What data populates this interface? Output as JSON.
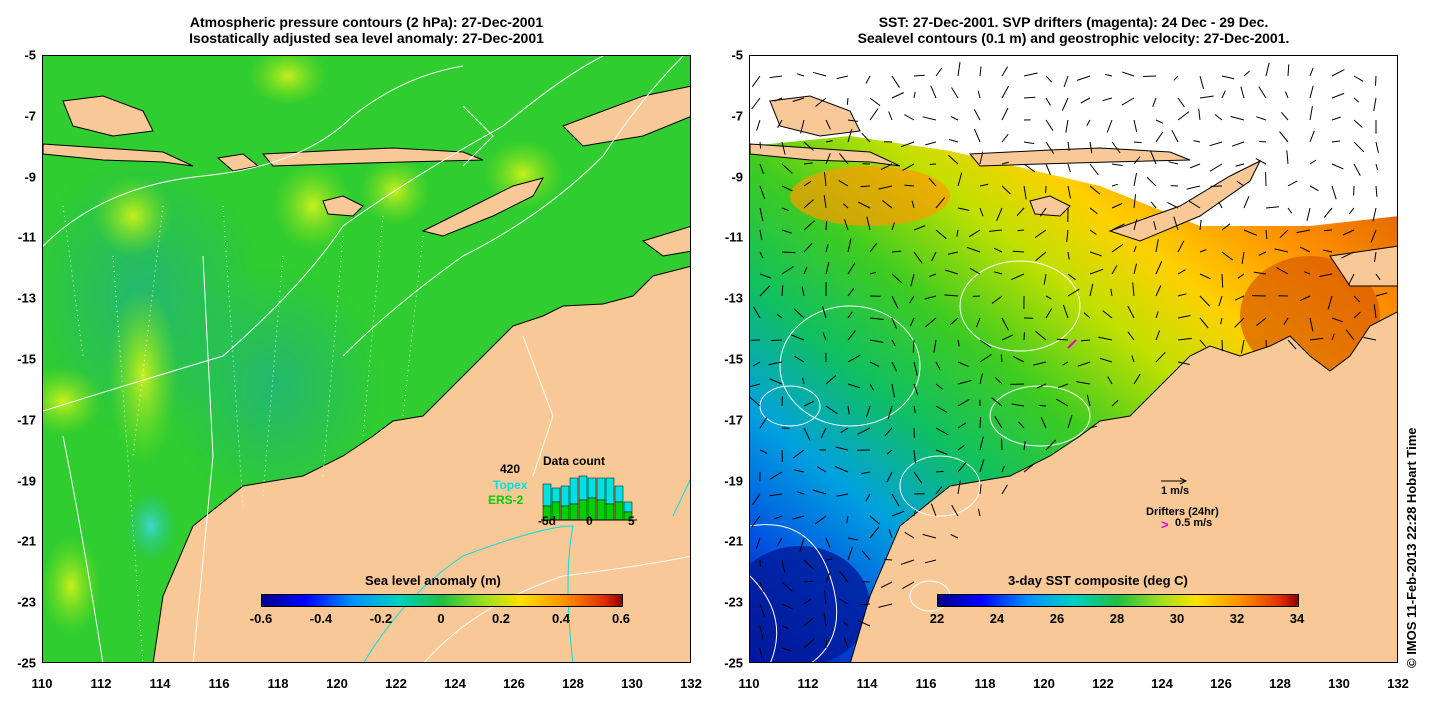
{
  "left_panel": {
    "title_line1": "Atmospheric pressure contours (2 hPa): 27-Dec-2001",
    "title_line2": "Isostatically adjusted sea level anomaly: 27-Dec-2001",
    "x_ticks": [
      "110",
      "112",
      "114",
      "116",
      "118",
      "120",
      "122",
      "124",
      "126",
      "128",
      "130",
      "132"
    ],
    "y_ticks": [
      "-5",
      "-7",
      "-9",
      "-11",
      "-13",
      "-15",
      "-17",
      "-19",
      "-21",
      "-23",
      "-25"
    ],
    "colorbar": {
      "title": "Sea level anomaly (m)",
      "labels": [
        "-0.6",
        "-0.4",
        "-0.2",
        "0",
        "0.2",
        "0.4",
        "0.6"
      ]
    },
    "data_count": {
      "title": "Data count",
      "count": "420",
      "topex": "Topex",
      "ers2": "ERS-2",
      "axis": [
        "-5d",
        "0",
        "5"
      ]
    }
  },
  "right_panel": {
    "title_line1": "SST: 27-Dec-2001. SVP drifters (magenta): 24 Dec - 29 Dec.",
    "title_line2": "Sealevel contours (0.1 m) and geostrophic velocity: 27-Dec-2001.",
    "x_ticks": [
      "110",
      "112",
      "114",
      "116",
      "118",
      "120",
      "122",
      "124",
      "126",
      "128",
      "130",
      "132"
    ],
    "y_ticks": [
      "-5",
      "-7",
      "-9",
      "-11",
      "-13",
      "-15",
      "-17",
      "-19",
      "-21",
      "-23",
      "-25"
    ],
    "colorbar": {
      "title": "3-day SST composite (deg C)",
      "labels": [
        "22",
        "24",
        "26",
        "28",
        "30",
        "32",
        "34"
      ]
    },
    "velocity_legend": "1 m/s",
    "drifters_legend": "Drifters (24hr)",
    "drifter_speed": "0.5 m/s"
  },
  "copyright": "© IMOS 11-Feb-2013 22:28 Hobart Time",
  "colors": {
    "land": "#f8c896",
    "sea_left": "#2fcd2f",
    "topex": "#00e0e0",
    "ers2": "#00d000",
    "drifter": "#e000e0"
  }
}
